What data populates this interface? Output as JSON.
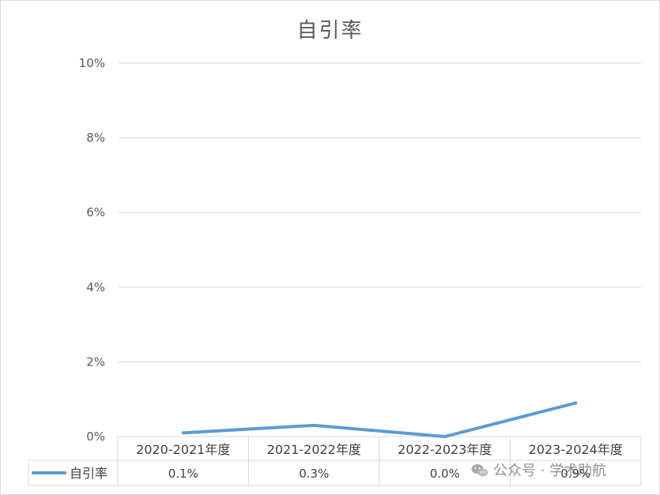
{
  "chart_data": {
    "type": "line",
    "title": "自引率",
    "categories": [
      "2020-2021年度",
      "2021-2022年度",
      "2022-2023年度",
      "2023-2024年度"
    ],
    "series": [
      {
        "name": "自引率",
        "values": [
          0.1,
          0.3,
          0.0,
          0.9
        ],
        "labels": [
          "0.1%",
          "0.3%",
          "0.0%",
          "0.9%"
        ],
        "color": "#5b9bd5"
      }
    ],
    "yticks": [
      "0%",
      "2%",
      "4%",
      "6%",
      "8%",
      "10%"
    ],
    "ylim": [
      0,
      10
    ],
    "grid": true,
    "legend": "data-table-left"
  },
  "watermark": "公众号 · 学术助航"
}
